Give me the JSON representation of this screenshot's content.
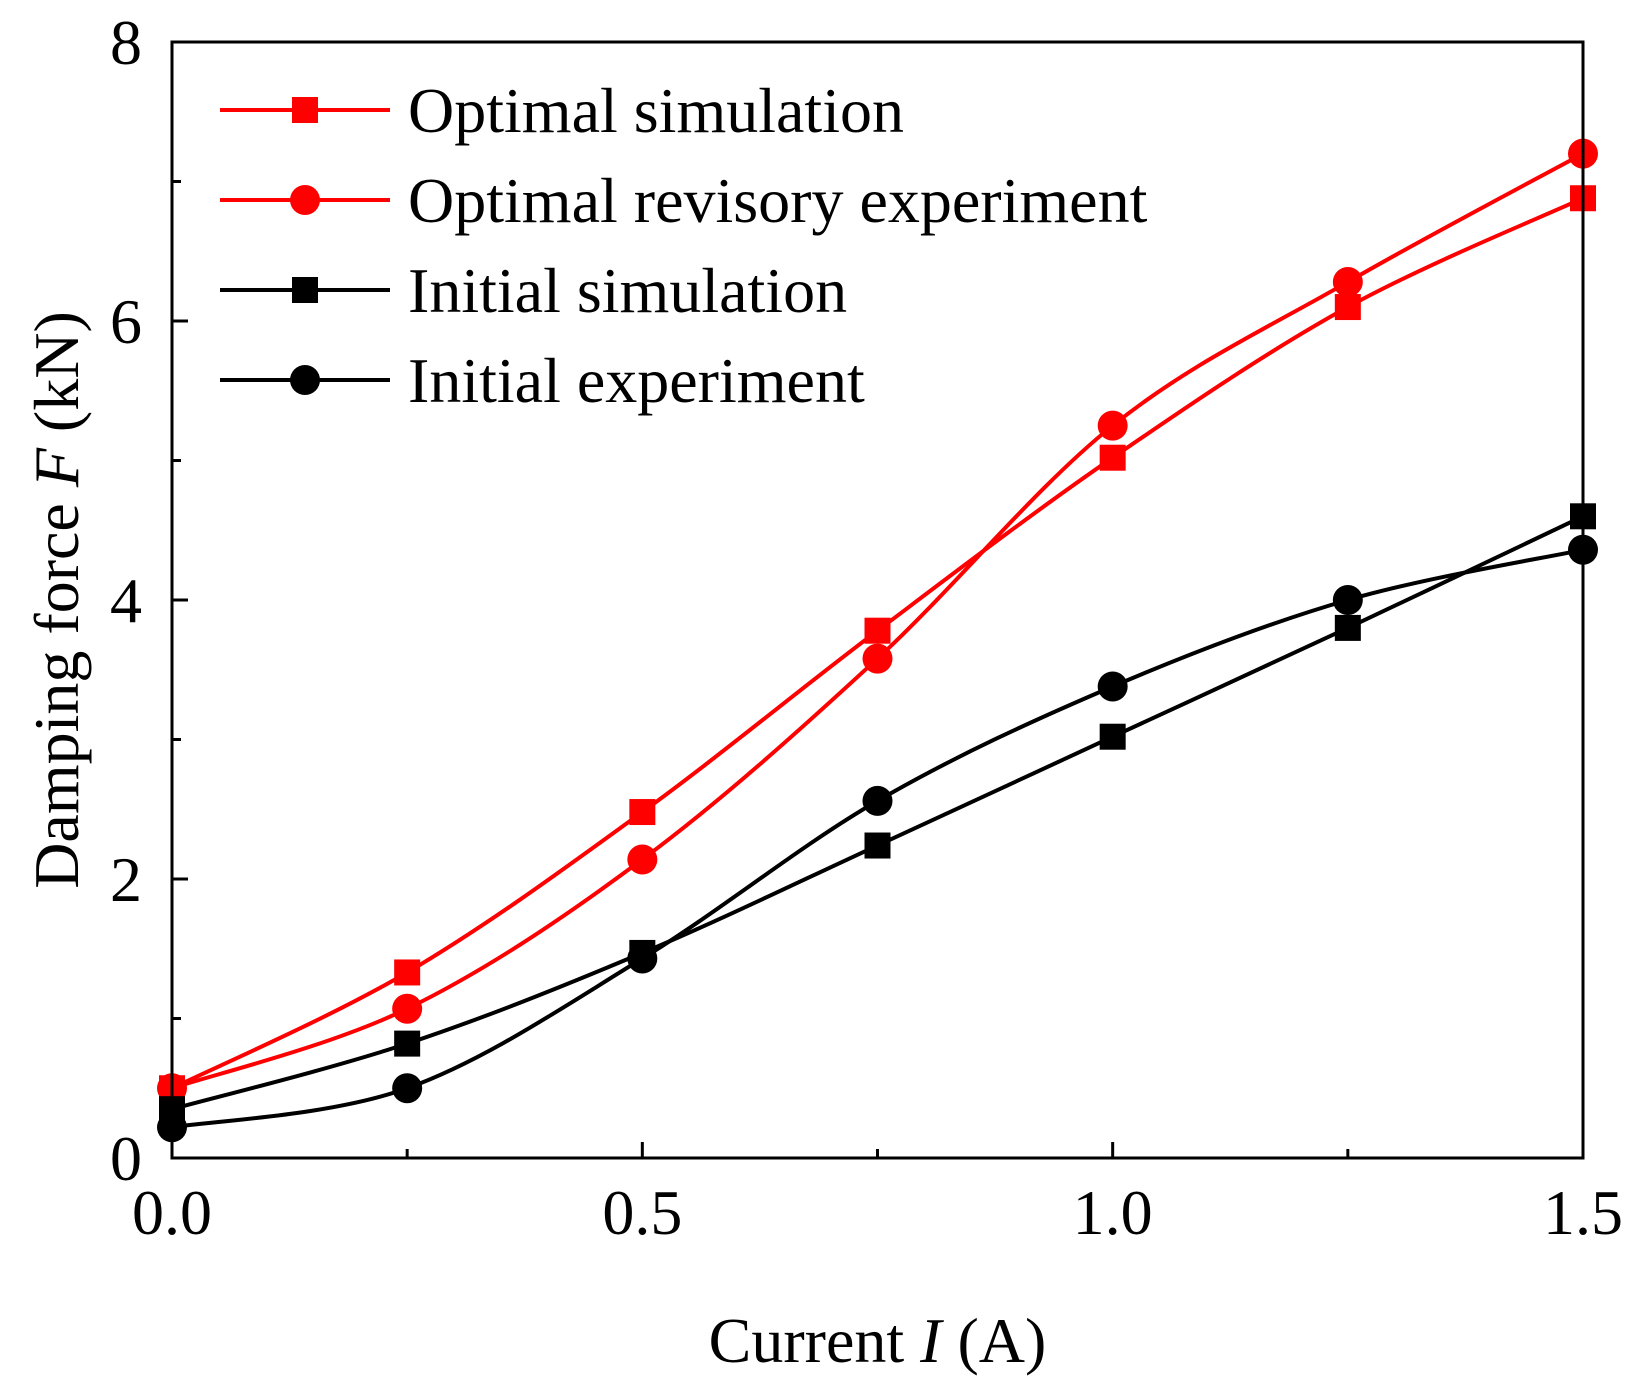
{
  "chart_data": {
    "type": "line",
    "title": "",
    "xlabel": "Current I (A)",
    "xlabel_prefix": "Current ",
    "xlabel_var": "I",
    "xlabel_unit": " (A)",
    "ylabel": "Damping force F (kN)",
    "ylabel_prefix": "Damping force ",
    "ylabel_var": "F",
    "ylabel_unit": " (kN)",
    "xlim": [
      0,
      1.5
    ],
    "ylim": [
      0,
      8
    ],
    "xticks": [
      0.0,
      0.5,
      1.0,
      1.5
    ],
    "xtick_labels": [
      "0.0",
      "0.5",
      "1.0",
      "1.5"
    ],
    "xticks_minor": [
      0.25,
      0.75,
      1.25
    ],
    "yticks": [
      0,
      2,
      4,
      6,
      8
    ],
    "ytick_labels": [
      "0",
      "2",
      "4",
      "6",
      "8"
    ],
    "yticks_minor": [
      1,
      3,
      5,
      7
    ],
    "grid": false,
    "legend_position": "top-left",
    "x": [
      0.0,
      0.25,
      0.5,
      0.75,
      1.0,
      1.25,
      1.5
    ],
    "series": [
      {
        "name": "Optimal simulation",
        "color": "#ff0000",
        "marker": "square",
        "values": [
          0.5,
          1.33,
          2.48,
          3.78,
          5.02,
          6.1,
          6.88
        ]
      },
      {
        "name": "Optimal revisory experiment",
        "color": "#ff0000",
        "marker": "circle",
        "values": [
          0.5,
          1.07,
          2.14,
          3.58,
          5.25,
          6.28,
          7.2
        ]
      },
      {
        "name": "Initial simulation",
        "color": "#000000",
        "marker": "square",
        "values": [
          0.35,
          0.82,
          1.47,
          2.24,
          3.02,
          3.8,
          4.6
        ]
      },
      {
        "name": "Initial experiment",
        "color": "#000000",
        "marker": "circle",
        "values": [
          0.22,
          0.5,
          1.43,
          2.56,
          3.38,
          4.0,
          4.36
        ]
      }
    ]
  }
}
